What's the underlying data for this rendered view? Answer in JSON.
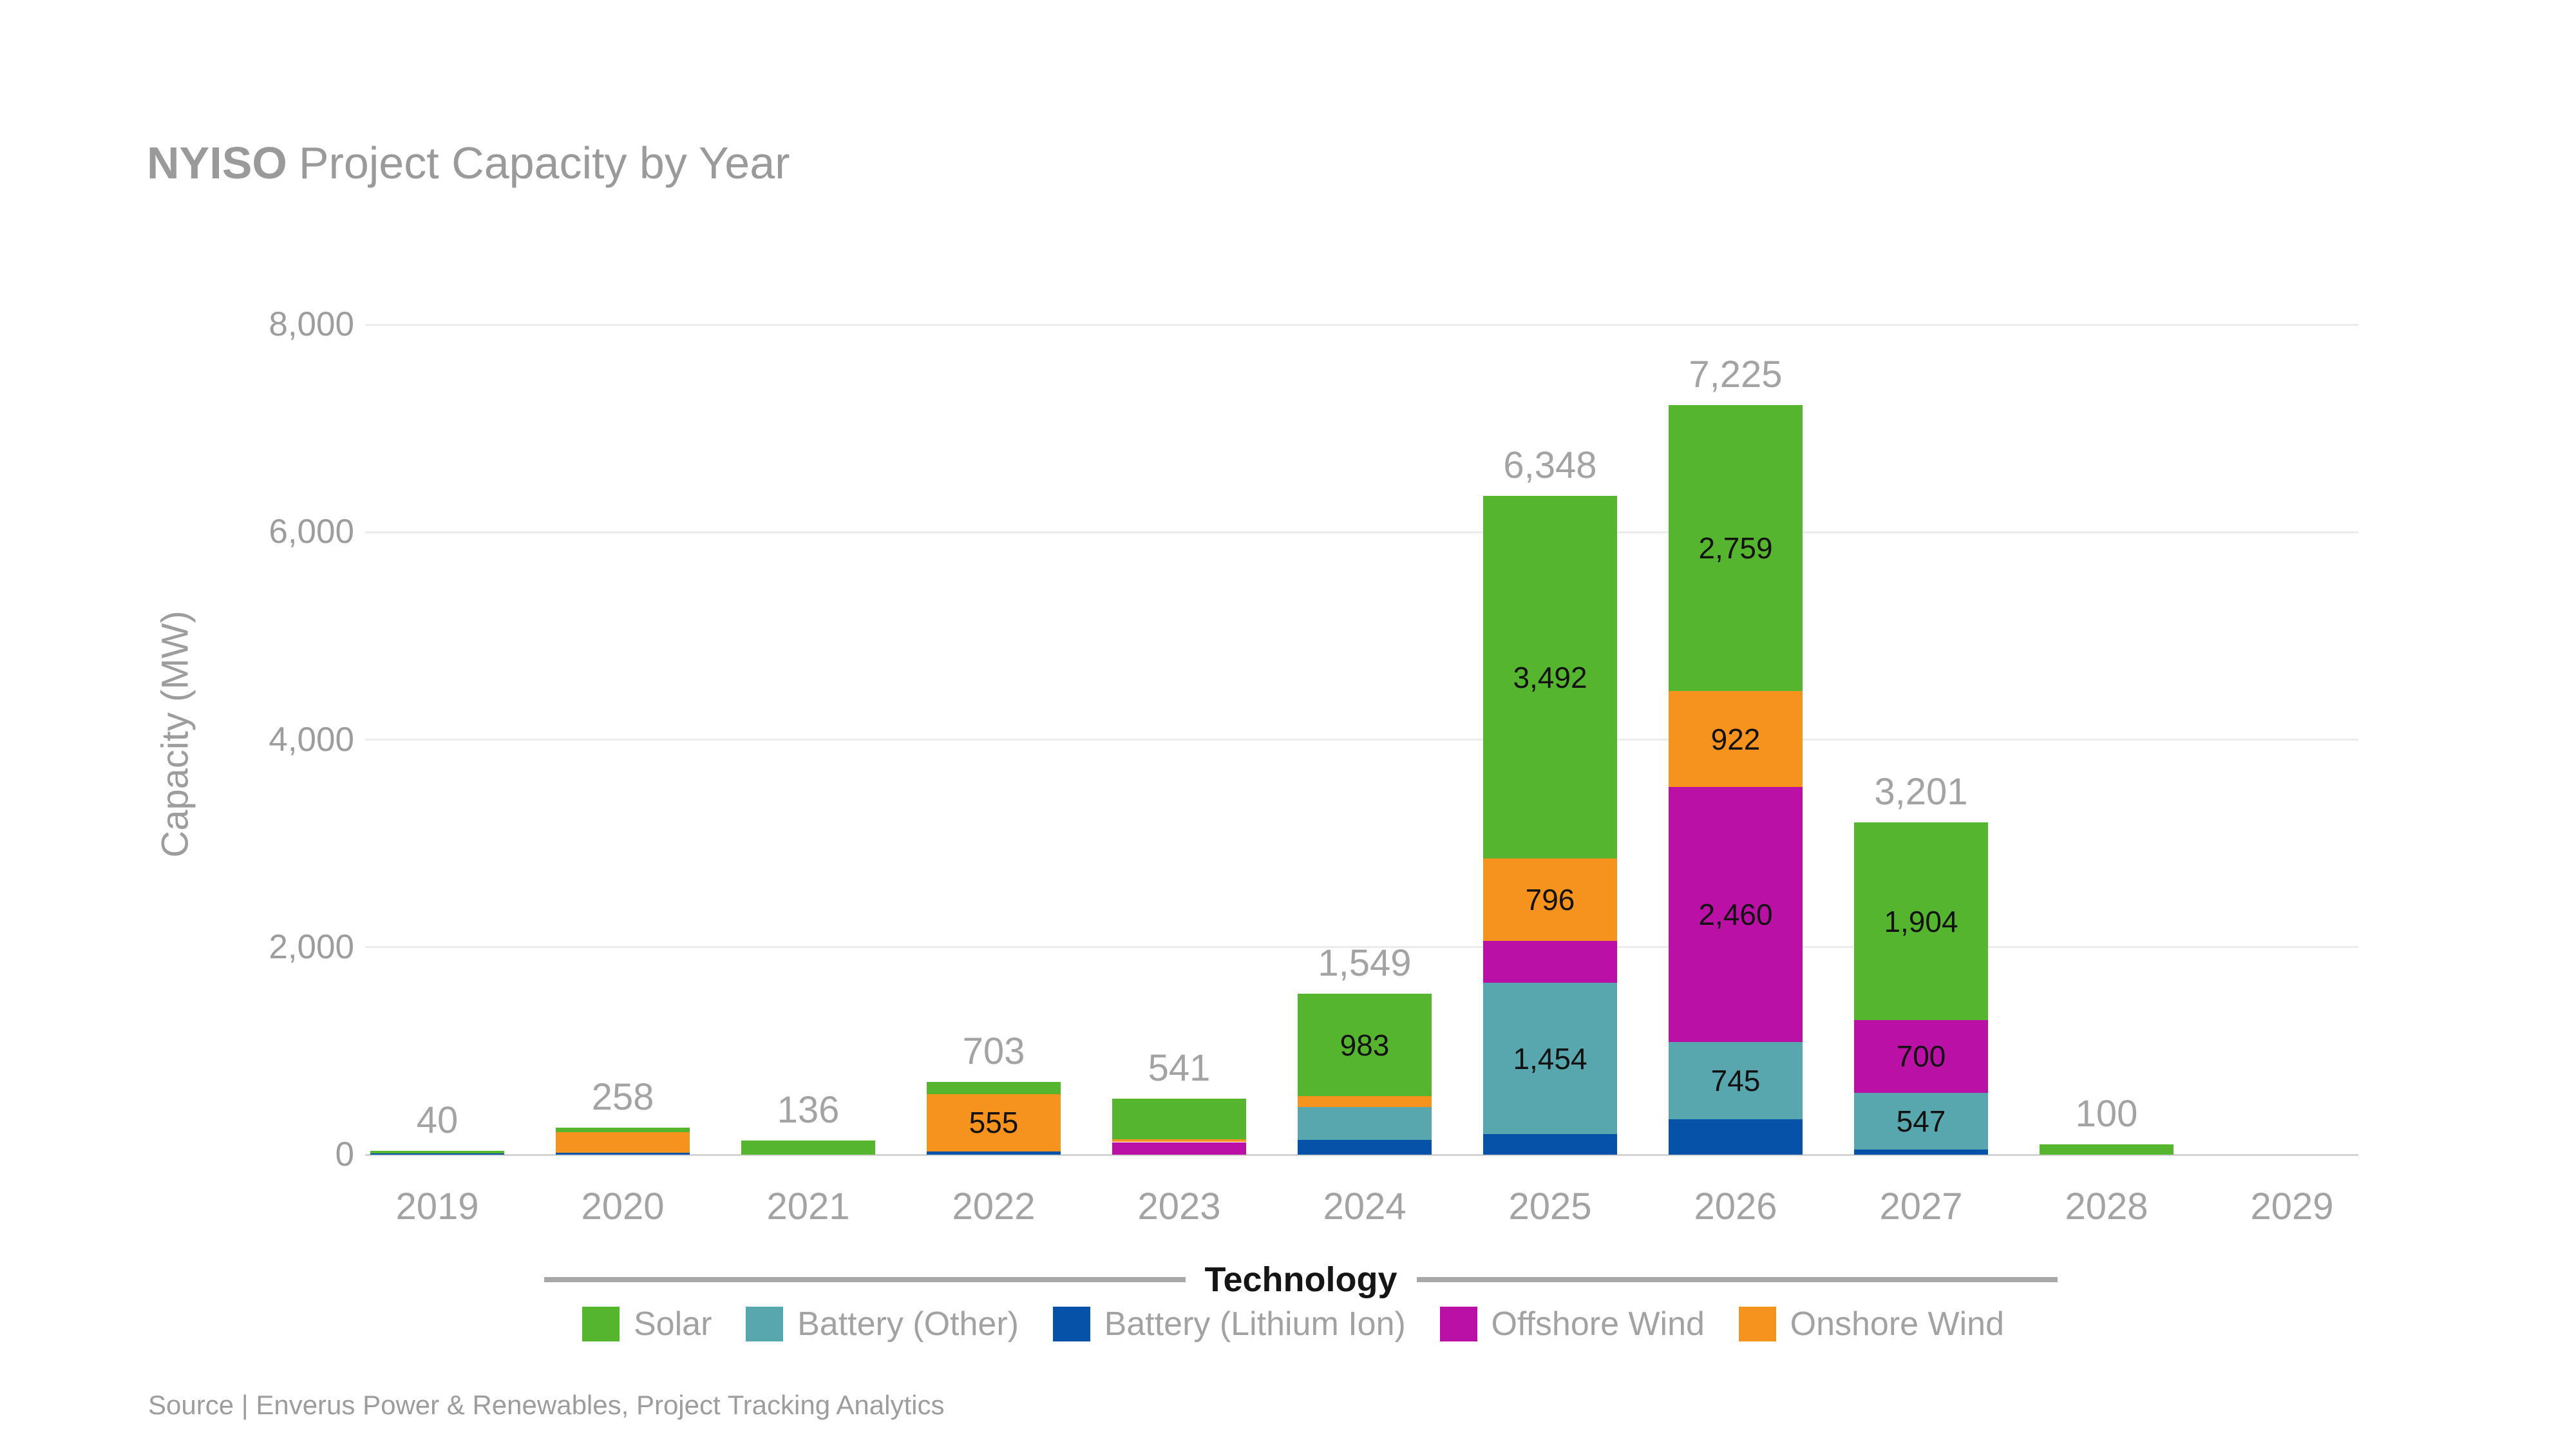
{
  "chart_data": {
    "type": "bar",
    "stacked": true,
    "title_bold": "NYISO",
    "title_rest": "Project Capacity by Year",
    "ylabel": "Capacity (MW)",
    "ylim": [
      0,
      8000
    ],
    "yticks": [
      0,
      2000,
      4000,
      6000,
      8000
    ],
    "grid": "horizontal",
    "legend_position": "bottom",
    "label_min": 500,
    "categories": [
      "2019",
      "2020",
      "2021",
      "2022",
      "2023",
      "2024",
      "2025",
      "2026",
      "2027",
      "2028",
      "2029"
    ],
    "series": [
      {
        "name": "Battery (Lithium Ion)",
        "color": "#0552a8",
        "values": [
          14,
          20,
          0,
          30,
          0,
          140,
          200,
          339,
          50,
          0,
          0
        ]
      },
      {
        "name": "Battery (Other)",
        "color": "#58a7ae",
        "values": [
          0,
          0,
          0,
          0,
          0,
          320,
          1454,
          745,
          547,
          0,
          0
        ]
      },
      {
        "name": "Offshore Wind",
        "color": "#ba10a6",
        "values": [
          0,
          0,
          0,
          0,
          121,
          0,
          406,
          2460,
          700,
          0,
          0
        ]
      },
      {
        "name": "Onshore Wind",
        "color": "#f6921e",
        "values": [
          0,
          195,
          0,
          555,
          30,
          106,
          796,
          922,
          0,
          0,
          0
        ]
      },
      {
        "name": "Solar",
        "color": "#56b52f",
        "values": [
          26,
          43,
          136,
          118,
          390,
          983,
          3492,
          2759,
          1904,
          100,
          0
        ]
      }
    ],
    "totals": [
      40,
      258,
      136,
      703,
      541,
      1549,
      6348,
      7225,
      3201,
      100,
      0
    ],
    "legend": {
      "title": "Technology",
      "entries": [
        {
          "label": "Solar",
          "color": "#56b52f"
        },
        {
          "label": "Battery (Other)",
          "color": "#58a7ae"
        },
        {
          "label": "Battery (Lithium Ion)",
          "color": "#0552a8"
        },
        {
          "label": "Offshore Wind",
          "color": "#ba10a6"
        },
        {
          "label": "Onshore Wind",
          "color": "#f6921e"
        }
      ]
    }
  },
  "source": {
    "text": "Source | Enverus Power & Renewables, Project Tracking Analytics"
  }
}
